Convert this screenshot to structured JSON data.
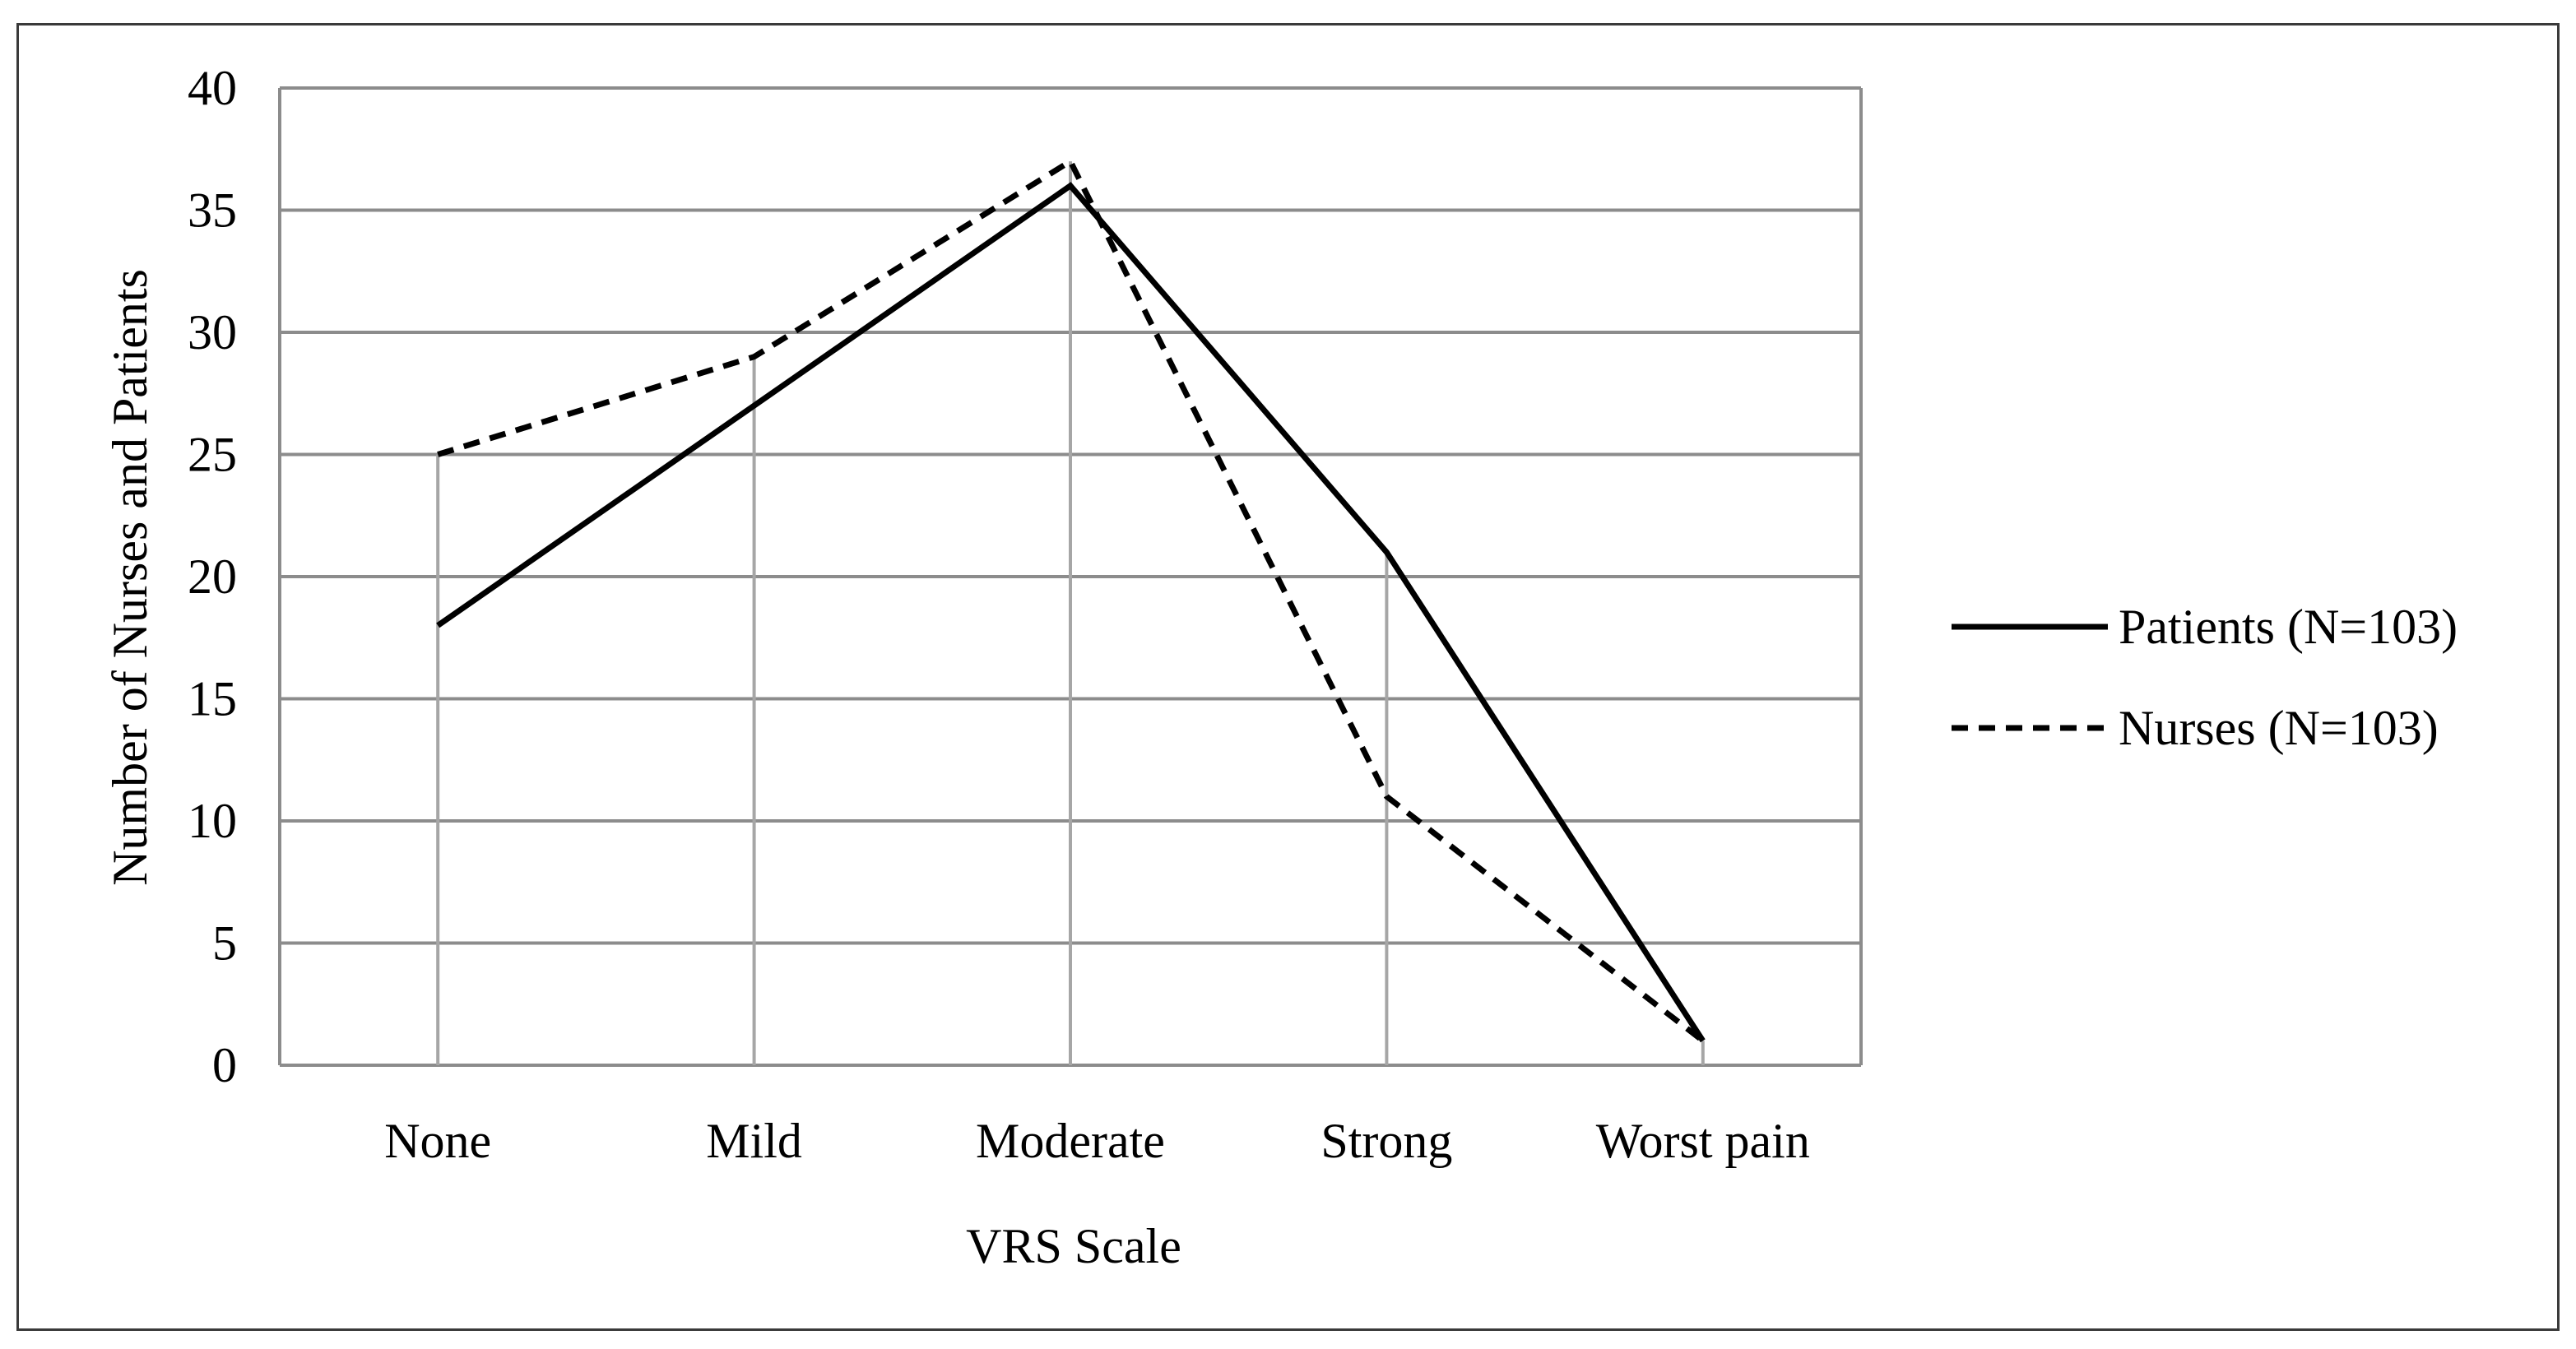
{
  "chart_data": {
    "type": "line",
    "title": "",
    "xlabel": "VRS Scale",
    "ylabel": "Number of Nurses and Patients",
    "categories": [
      "None",
      "Mild",
      "Moderate",
      "Strong",
      "Worst pain"
    ],
    "yticks": [
      "0",
      "5",
      "10",
      "15",
      "20",
      "25",
      "30",
      "35",
      "40"
    ],
    "ylim": [
      0,
      40
    ],
    "grid": "horizontal and vertical drop lines",
    "legend_position": "right",
    "series": [
      {
        "name": "Patients (N=103)",
        "style": "solid",
        "values": [
          18,
          27,
          36,
          21,
          1
        ]
      },
      {
        "name": "Nurses (N=103)",
        "style": "dashed",
        "values": [
          25,
          29,
          37,
          11,
          1
        ]
      }
    ],
    "colors": {
      "line": "#000000",
      "grid": "#8c8c8c",
      "frame": "#3a3a3a"
    }
  }
}
